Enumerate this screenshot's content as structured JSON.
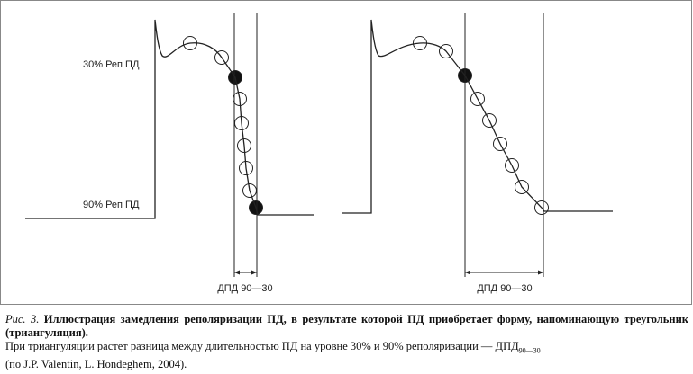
{
  "figure": {
    "left_panel": {
      "level_30": "30% Реп ПД",
      "level_90": "90% Реп ПД",
      "measure": "ДПД 90—30"
    },
    "right_panel": {
      "measure": "ДПД 90—30"
    }
  },
  "caption": {
    "label": "Рис. 3.",
    "title": "Иллюстрация замедления реполяризации ПД, в результате которой ПД приобретает форму, напоминающую треугольник (триангуляция).",
    "body": "При триангуляции растет разница между длительностью ПД на уровне 30% и 90% реполяризации — ДПД",
    "subscript": "90—30",
    "source": "(по J.P. Valentin, L. Hondeghem, 2004)."
  }
}
